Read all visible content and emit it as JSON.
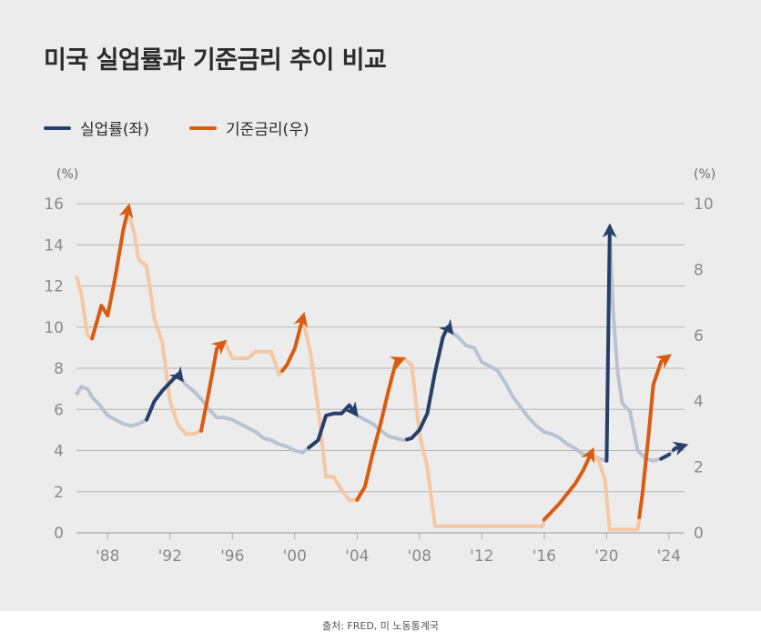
{
  "title": "미국 실업률과 기준금리 추이 비교",
  "legend": {
    "unemployment": "실업률(좌)",
    "fed_rate": "기준금리(우)"
  },
  "source": "출처: FRED, 미 노동통계국",
  "colors": {
    "unemployment": "#27406b",
    "unemployment_faded": "#b9c3d0",
    "fed_rate": "#d95c12",
    "fed_rate_faded": "#f6c7a3",
    "grid": "#b4b4b4",
    "background": "#ececec"
  },
  "chart_data": {
    "type": "line",
    "title": "미국 실업률과 기준금리 추이 비교",
    "x_tick_labels": [
      "'88",
      "'92",
      "'96",
      "'00",
      "'04",
      "'08",
      "'12",
      "'16",
      "'20",
      "'24"
    ],
    "x_tick_years": [
      1988,
      1992,
      1996,
      2000,
      2004,
      2008,
      2012,
      2016,
      2020,
      2024
    ],
    "xlim": [
      1986,
      2025
    ],
    "left_axis": {
      "unit": "(%)",
      "ylim": [
        0,
        16
      ],
      "ticks": [
        0,
        2,
        4,
        6,
        8,
        10,
        12,
        14,
        16
      ]
    },
    "right_axis": {
      "unit": "(%)",
      "ylim": [
        0,
        10
      ],
      "ticks": [
        0,
        2,
        4,
        6,
        8,
        10
      ]
    },
    "grid": "horizontal",
    "legend_position": "top-left",
    "series": [
      {
        "name": "실업률(좌)",
        "axis": "left",
        "points": [
          [
            1986.0,
            6.7
          ],
          [
            1986.3,
            7.1
          ],
          [
            1986.7,
            7.0
          ],
          [
            1987.0,
            6.6
          ],
          [
            1987.5,
            6.2
          ],
          [
            1988.0,
            5.7
          ],
          [
            1988.5,
            5.5
          ],
          [
            1989.0,
            5.3
          ],
          [
            1989.5,
            5.2
          ],
          [
            1990.0,
            5.3
          ],
          [
            1990.5,
            5.5
          ],
          [
            1991.0,
            6.4
          ],
          [
            1991.5,
            6.9
          ],
          [
            1992.0,
            7.3
          ],
          [
            1992.5,
            7.7
          ],
          [
            1993.0,
            7.2
          ],
          [
            1993.5,
            6.9
          ],
          [
            1994.0,
            6.5
          ],
          [
            1994.5,
            6.0
          ],
          [
            1995.0,
            5.6
          ],
          [
            1995.5,
            5.6
          ],
          [
            1996.0,
            5.5
          ],
          [
            1996.5,
            5.3
          ],
          [
            1997.0,
            5.1
          ],
          [
            1997.5,
            4.9
          ],
          [
            1998.0,
            4.6
          ],
          [
            1998.5,
            4.5
          ],
          [
            1999.0,
            4.3
          ],
          [
            1999.5,
            4.2
          ],
          [
            2000.0,
            4.0
          ],
          [
            2000.5,
            3.9
          ],
          [
            2001.0,
            4.2
          ],
          [
            2001.5,
            4.5
          ],
          [
            2002.0,
            5.7
          ],
          [
            2002.5,
            5.8
          ],
          [
            2003.0,
            5.8
          ],
          [
            2003.5,
            6.2
          ],
          [
            2004.0,
            5.7
          ],
          [
            2004.5,
            5.5
          ],
          [
            2005.0,
            5.3
          ],
          [
            2005.5,
            5.0
          ],
          [
            2006.0,
            4.7
          ],
          [
            2006.5,
            4.6
          ],
          [
            2007.0,
            4.5
          ],
          [
            2007.5,
            4.6
          ],
          [
            2008.0,
            5.0
          ],
          [
            2008.5,
            5.8
          ],
          [
            2009.0,
            7.8
          ],
          [
            2009.5,
            9.5
          ],
          [
            2009.8,
            10.0
          ],
          [
            2010.0,
            9.8
          ],
          [
            2010.5,
            9.5
          ],
          [
            2011.0,
            9.1
          ],
          [
            2011.5,
            9.0
          ],
          [
            2012.0,
            8.3
          ],
          [
            2012.5,
            8.1
          ],
          [
            2013.0,
            7.9
          ],
          [
            2013.5,
            7.3
          ],
          [
            2014.0,
            6.6
          ],
          [
            2014.5,
            6.1
          ],
          [
            2015.0,
            5.6
          ],
          [
            2015.5,
            5.2
          ],
          [
            2016.0,
            4.9
          ],
          [
            2016.5,
            4.8
          ],
          [
            2017.0,
            4.6
          ],
          [
            2017.5,
            4.3
          ],
          [
            2018.0,
            4.1
          ],
          [
            2018.5,
            3.8
          ],
          [
            2019.0,
            3.8
          ],
          [
            2019.5,
            3.6
          ],
          [
            2020.0,
            3.5
          ],
          [
            2020.2,
            14.7
          ],
          [
            2020.4,
            11.0
          ],
          [
            2020.7,
            7.9
          ],
          [
            2021.0,
            6.3
          ],
          [
            2021.5,
            5.9
          ],
          [
            2022.0,
            4.0
          ],
          [
            2022.5,
            3.6
          ],
          [
            2023.0,
            3.5
          ],
          [
            2023.5,
            3.6
          ],
          [
            2024.0,
            3.8
          ],
          [
            2024.4,
            4.1
          ],
          [
            2024.8,
            4.2
          ]
        ]
      },
      {
        "name": "기준금리(우)",
        "axis": "right",
        "points": [
          [
            1986.0,
            7.8
          ],
          [
            1986.3,
            7.3
          ],
          [
            1986.7,
            6.0
          ],
          [
            1987.0,
            5.9
          ],
          [
            1987.3,
            6.4
          ],
          [
            1987.6,
            6.9
          ],
          [
            1988.0,
            6.6
          ],
          [
            1988.5,
            7.8
          ],
          [
            1989.0,
            9.2
          ],
          [
            1989.3,
            9.8
          ],
          [
            1989.7,
            9.1
          ],
          [
            1990.0,
            8.3
          ],
          [
            1990.5,
            8.1
          ],
          [
            1991.0,
            6.5
          ],
          [
            1991.5,
            5.8
          ],
          [
            1992.0,
            4.0
          ],
          [
            1992.5,
            3.3
          ],
          [
            1993.0,
            3.0
          ],
          [
            1993.5,
            3.0
          ],
          [
            1994.0,
            3.1
          ],
          [
            1994.5,
            4.3
          ],
          [
            1995.0,
            5.6
          ],
          [
            1995.5,
            5.8
          ],
          [
            1996.0,
            5.3
          ],
          [
            1996.5,
            5.3
          ],
          [
            1997.0,
            5.3
          ],
          [
            1997.5,
            5.5
          ],
          [
            1998.0,
            5.5
          ],
          [
            1998.5,
            5.5
          ],
          [
            1999.0,
            4.8
          ],
          [
            1999.5,
            5.1
          ],
          [
            2000.0,
            5.6
          ],
          [
            2000.5,
            6.5
          ],
          [
            2001.0,
            5.5
          ],
          [
            2001.5,
            3.8
          ],
          [
            2002.0,
            1.7
          ],
          [
            2002.5,
            1.7
          ],
          [
            2003.0,
            1.3
          ],
          [
            2003.5,
            1.0
          ],
          [
            2004.0,
            1.0
          ],
          [
            2004.5,
            1.4
          ],
          [
            2005.0,
            2.4
          ],
          [
            2005.5,
            3.3
          ],
          [
            2006.0,
            4.3
          ],
          [
            2006.5,
            5.2
          ],
          [
            2007.0,
            5.3
          ],
          [
            2007.5,
            5.1
          ],
          [
            2008.0,
            3.0
          ],
          [
            2008.5,
            2.0
          ],
          [
            2009.0,
            0.2
          ],
          [
            2010.0,
            0.2
          ],
          [
            2012.0,
            0.2
          ],
          [
            2014.0,
            0.2
          ],
          [
            2015.9,
            0.2
          ],
          [
            2016.0,
            0.4
          ],
          [
            2017.0,
            0.9
          ],
          [
            2017.5,
            1.2
          ],
          [
            2018.0,
            1.5
          ],
          [
            2018.5,
            1.9
          ],
          [
            2019.0,
            2.4
          ],
          [
            2019.5,
            2.2
          ],
          [
            2019.9,
            1.6
          ],
          [
            2020.2,
            0.1
          ],
          [
            2021.0,
            0.1
          ],
          [
            2022.0,
            0.1
          ],
          [
            2022.3,
            1.2
          ],
          [
            2022.7,
            3.0
          ],
          [
            2023.0,
            4.5
          ],
          [
            2023.5,
            5.2
          ],
          [
            2023.8,
            5.3
          ]
        ]
      }
    ],
    "annotations": {
      "unemployment_upswings": [
        [
          1990.5,
          1992.6
        ],
        [
          2000.9,
          2003.8
        ],
        [
          2007.2,
          2009.9
        ],
        [
          2020.0,
          2020.2
        ],
        [
          2023.5,
          2024.8
        ]
      ],
      "rate_hikes": [
        [
          1987.0,
          1989.3
        ],
        [
          1994.0,
          1995.3
        ],
        [
          1999.2,
          2000.5
        ],
        [
          2004.0,
          2006.7
        ],
        [
          2016.0,
          2019.0
        ],
        [
          2022.1,
          2023.8
        ]
      ]
    }
  }
}
